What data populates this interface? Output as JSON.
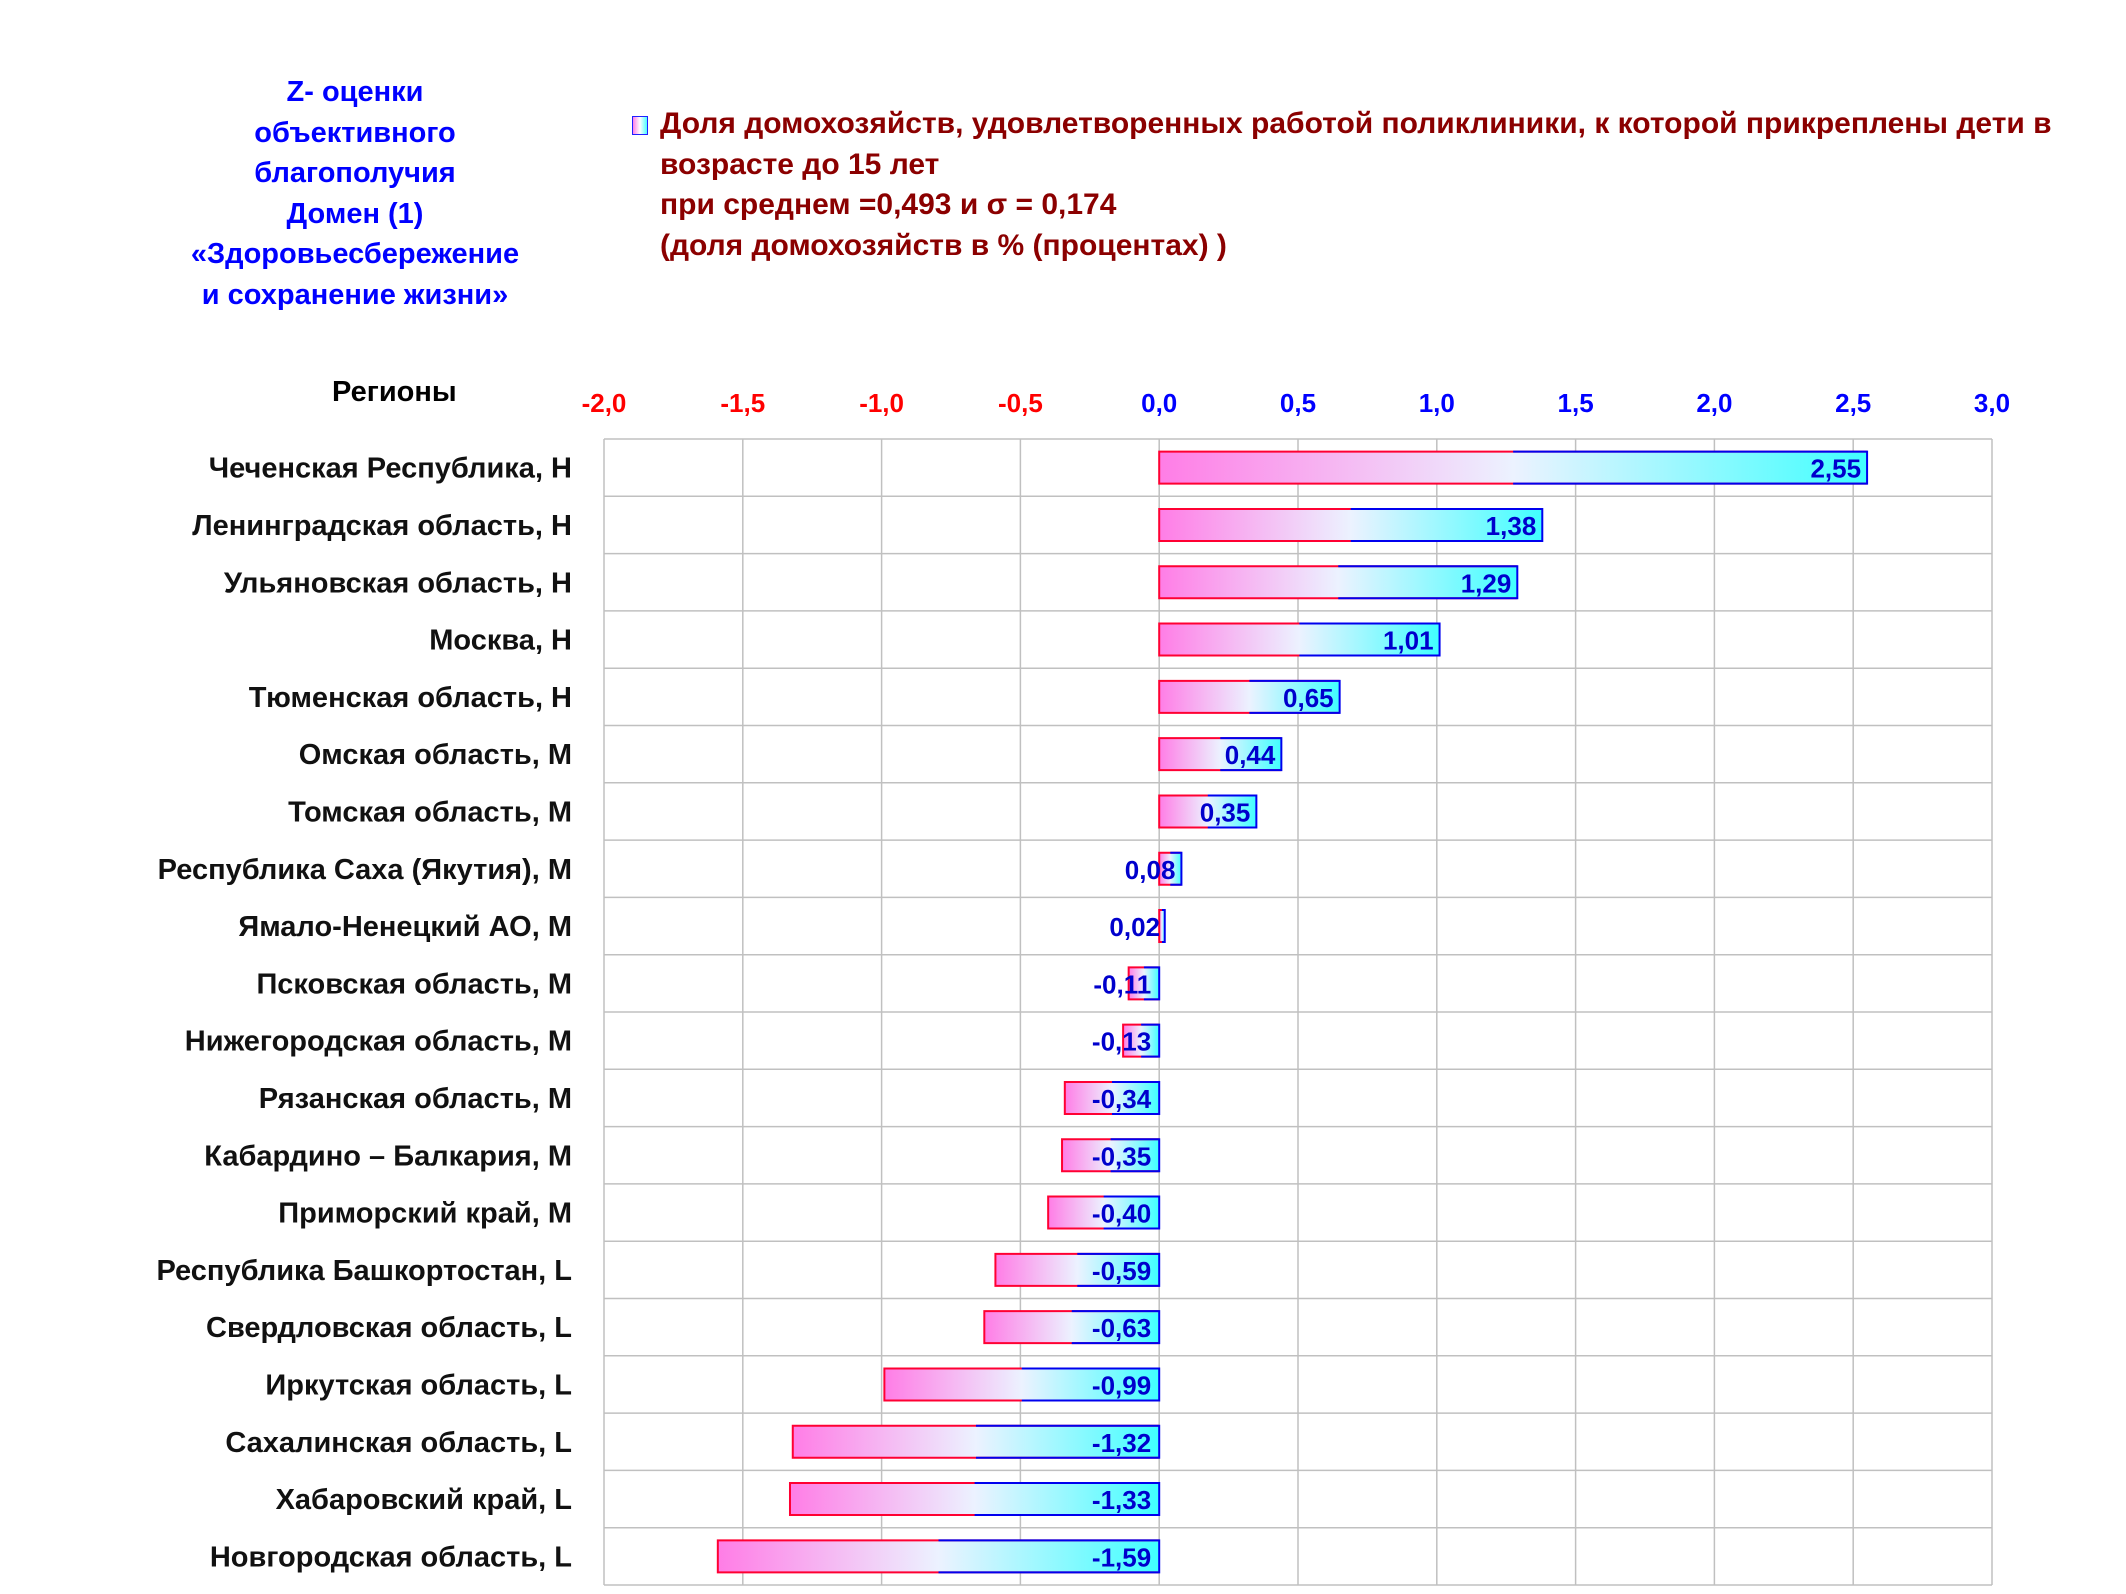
{
  "side_title": {
    "lines": [
      "Z- оценки",
      "объективного",
      "благополучия",
      "Домен (1)",
      "«Здоровьесбережение",
      "и сохранение жизни»"
    ]
  },
  "legend": {
    "lines": [
      "Доля домохозяйств, удовлетворенных работой поликлиники, к которой прикреплены дети в",
      "возрасте до 15 лет",
      "при среднем =0,493  и σ = 0,174",
      "(доля домохозяйств в % (процентах) )"
    ]
  },
  "regions_header": "Регионы",
  "colors": {
    "negative_tick": "#ff0000",
    "positive_tick": "#0000ff",
    "bar_border_left": "#ff0033",
    "bar_border_right": "#0000ee",
    "bar_gradient_start": "#ff7de6",
    "bar_gradient_mid": "#ecf2ff",
    "bar_gradient_end": "#40ffff",
    "value_label": "#0000cc",
    "grid": "#c0c0c0"
  },
  "chart_data": {
    "type": "bar",
    "orientation": "horizontal",
    "xlim": [
      -2.0,
      3.0
    ],
    "xticks": [
      -2.0,
      -1.5,
      -1.0,
      -0.5,
      0.0,
      0.5,
      1.0,
      1.5,
      2.0,
      2.5,
      3.0
    ],
    "xtick_labels": [
      "-2,0",
      "-1,5",
      "-1,0",
      "-0,5",
      "0,0",
      "0,5",
      "1,0",
      "1,5",
      "2,0",
      "2,5",
      "3,0"
    ],
    "grid": true,
    "legend_position": "top",
    "categories": [
      "Чеченская Республика,  H",
      "Ленинградская область,  H",
      "Ульяновская область,  H",
      "Москва,  H",
      "Тюменская область,  H",
      "Омская область,  M",
      "Томская область,  M",
      "Республика Саха (Якутия),  M",
      "Ямало-Ненецкий АО,  M",
      "Псковская область,  M",
      "Нижегородская область,  M",
      "Рязанская область,  M",
      "Кабардино – Балкария,  M",
      "Приморский край,  M",
      "Республика Башкортостан,  L",
      "Свердловская область,  L",
      "Иркутская область,  L",
      "Сахалинская область,  L",
      "Хабаровский край,  L",
      "Новгородская область,  L"
    ],
    "values": [
      2.55,
      1.38,
      1.29,
      1.01,
      0.65,
      0.44,
      0.35,
      0.08,
      0.02,
      -0.11,
      -0.13,
      -0.34,
      -0.35,
      -0.4,
      -0.59,
      -0.63,
      -0.99,
      -1.32,
      -1.33,
      -1.59
    ],
    "value_labels": [
      "2,55",
      "1,38",
      "1,29",
      "1,01",
      "0,65",
      "0,44",
      "0,35",
      "0,08",
      "0,02",
      "-0,11",
      "-0,13",
      "-0,34",
      "-0,35",
      "-0,40",
      "-0,59",
      "-0,63",
      "-0,99",
      "-1,32",
      "-1,33",
      "-1,59"
    ]
  }
}
